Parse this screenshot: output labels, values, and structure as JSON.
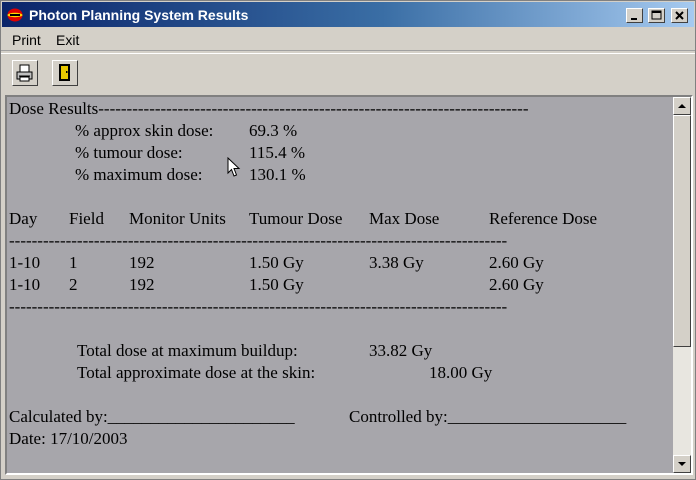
{
  "window": {
    "title": "Photon Planning System Results"
  },
  "menu": {
    "print": "Print",
    "exit": "Exit"
  },
  "results": {
    "header": "Dose Results----------------------------------------------------------------------------",
    "skin_label": "% approx skin dose:",
    "skin_value": "69.3 %",
    "tumour_label": "% tumour dose:",
    "tumour_value": "115.4 %",
    "max_label": "% maximum dose:",
    "max_value": "130.1 %",
    "columns": [
      "Day",
      "Field",
      "Monitor Units",
      "Tumour Dose",
      "Max Dose",
      "Reference Dose"
    ],
    "divider": "----------------------------------------------------------------------------------------",
    "rows": [
      [
        "1-10",
        "1",
        "192",
        "1.50 Gy",
        "3.38 Gy",
        "2.60 Gy"
      ],
      [
        "1-10",
        "2",
        "192",
        "1.50 Gy",
        "",
        "2.60 Gy"
      ]
    ],
    "total_buildup_label": "Total dose at maximum buildup:",
    "total_buildup_value": "33.82 Gy",
    "total_skin_label": "Total approximate dose at the skin:",
    "total_skin_value": "18.00 Gy",
    "calculated_by": "Calculated by:______________________",
    "controlled_by": "Controlled by:_____________________",
    "date": "Date: 17/10/2003"
  },
  "icons": {
    "app": "app-logo-icon",
    "print": "printer-icon",
    "exit": "exit-door-icon"
  }
}
